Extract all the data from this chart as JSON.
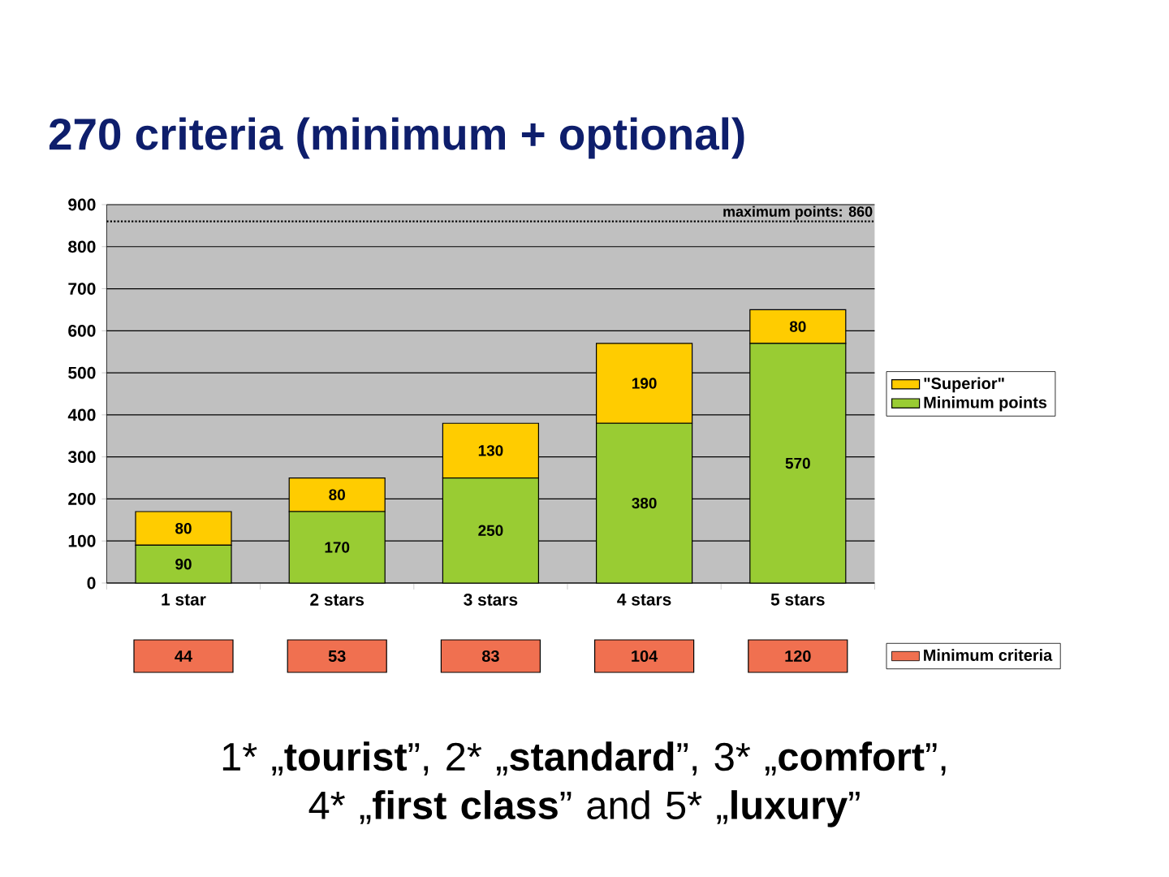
{
  "chart_data": [
    {
      "type": "bar",
      "title": "270 criteria (minimum + optional)",
      "categories": [
        "1 star",
        "2 stars",
        "3 stars",
        "4 stars",
        "5 stars"
      ],
      "stacked": true,
      "series": [
        {
          "name": "Minimum points",
          "color": "#99cc33",
          "values": [
            90,
            170,
            250,
            380,
            570
          ]
        },
        {
          "name": "\"Superior\"",
          "color": "#ffcc00",
          "values": [
            80,
            80,
            130,
            190,
            80
          ]
        }
      ],
      "ylim": [
        0,
        900
      ],
      "yticks": [
        0,
        100,
        200,
        300,
        400,
        500,
        600,
        700,
        800,
        900
      ],
      "grid": "y",
      "legend": "right",
      "data_labels": true,
      "ref_lines": [
        {
          "axis": "y",
          "value": 860,
          "label": "maximum points: 860",
          "line_style": "dotted",
          "color": "#000000"
        }
      ],
      "annotations": [
        "1* „**tourist**”, 2* „**standard**”, 3* „**comfort**”, 4* „**first class**” and 5* „**luxury**”"
      ]
    },
    {
      "type": "other",
      "categories": [
        null,
        null,
        null,
        null,
        null
      ],
      "series": [
        {
          "name": "Minimum criteria",
          "color": "#f07050",
          "values": [
            44,
            53,
            83,
            104,
            120
          ]
        }
      ],
      "data_labels": true,
      "legend": "right"
    }
  ]
}
